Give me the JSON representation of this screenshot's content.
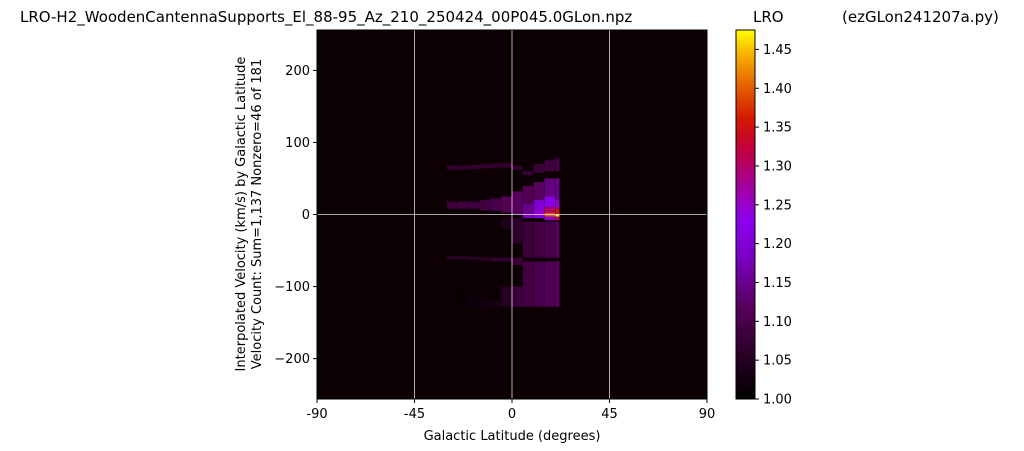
{
  "page": {
    "title": "LRO-H2_WoodenCantennaSupports_El_88-95_Az_210_250424_00P045.0GLon.npz",
    "colorbar_label": "LRO",
    "script_name": "(ezGLon241207a.py)"
  },
  "chart_data": {
    "type": "heatmap",
    "title": "LRO-H2_WoodenCantennaSupports_El_88-95_Az_210_250424_00P045.0GLon.npz",
    "xlabel": "Galactic Latitude (degrees)",
    "ylabel": "Interpolated Velocity (km/s) by Galactic Latitude",
    "ylabel2": "Velocity Count: Sum=1,137 Nonzero=46 of 181",
    "xlim": [
      -90,
      90
    ],
    "ylim": [
      -256,
      256
    ],
    "xticks": [
      -90,
      -45,
      0,
      45,
      90
    ],
    "xtick_labels": [
      "-90",
      "-45",
      "0",
      "45",
      "90"
    ],
    "yticks": [
      -200,
      -100,
      0,
      100,
      200
    ],
    "ytick_labels": [
      "−200",
      "−100",
      "0",
      "100",
      "200"
    ],
    "grid": true,
    "colormap": "gnuplot",
    "clim": [
      1.0,
      1.475
    ],
    "colorbar_ticks": [
      1.0,
      1.05,
      1.1,
      1.15,
      1.2,
      1.25,
      1.3,
      1.35,
      1.4,
      1.45
    ],
    "colorbar_tick_labels": [
      "1.00",
      "1.05",
      "1.10",
      "1.15",
      "1.20",
      "1.25",
      "1.30",
      "1.35",
      "1.40",
      "1.45"
    ],
    "columns": [
      {
        "lat": [
          -30,
          -25
        ],
        "ranges": [
          [
            62,
            68,
            1.07
          ],
          [
            8,
            18,
            1.08
          ],
          [
            -62,
            -58,
            1.06
          ]
        ]
      },
      {
        "lat": [
          -25,
          -20
        ],
        "ranges": [
          [
            62,
            68,
            1.07
          ],
          [
            8,
            18,
            1.09
          ],
          [
            -62,
            -58,
            1.06
          ],
          [
            -105,
            -128,
            1.01
          ]
        ]
      },
      {
        "lat": [
          -20,
          -15
        ],
        "ranges": [
          [
            63,
            69,
            1.07
          ],
          [
            8,
            18,
            1.09
          ],
          [
            -63,
            -59,
            1.06
          ],
          [
            -110,
            -128,
            1.02
          ]
        ]
      },
      {
        "lat": [
          -15,
          -10
        ],
        "ranges": [
          [
            64,
            70,
            1.07
          ],
          [
            6,
            20,
            1.09
          ],
          [
            -64,
            -60,
            1.06
          ],
          [
            -115,
            -128,
            1.02
          ]
        ]
      },
      {
        "lat": [
          -10,
          -5
        ],
        "ranges": [
          [
            65,
            71,
            1.07
          ],
          [
            5,
            22,
            1.1
          ],
          [
            -65,
            -60,
            1.07
          ],
          [
            -120,
            -128,
            1.03
          ]
        ]
      },
      {
        "lat": [
          -5,
          0
        ],
        "ranges": [
          [
            65,
            71,
            1.07
          ],
          [
            3,
            25,
            1.11
          ],
          [
            -20,
            -5,
            1.04
          ],
          [
            -65,
            -60,
            1.07
          ],
          [
            -128,
            -100,
            1.05
          ]
        ]
      },
      {
        "lat": [
          0,
          5
        ],
        "ranges": [
          [
            62,
            68,
            1.07
          ],
          [
            0,
            32,
            1.12
          ],
          [
            -40,
            -5,
            1.06
          ],
          [
            -70,
            -60,
            1.08
          ],
          [
            -128,
            -100,
            1.08
          ]
        ]
      },
      {
        "lat": [
          5,
          10
        ],
        "ranges": [
          [
            55,
            60,
            1.08
          ],
          [
            15,
            40,
            1.11
          ],
          [
            0,
            15,
            1.15
          ],
          [
            -5,
            0,
            1.18
          ],
          [
            -60,
            -10,
            1.08
          ],
          [
            -128,
            -65,
            1.09
          ]
        ]
      },
      {
        "lat": [
          10,
          15
        ],
        "ranges": [
          [
            58,
            70,
            1.08
          ],
          [
            20,
            45,
            1.12
          ],
          [
            5,
            20,
            1.2
          ],
          [
            0,
            5,
            1.25
          ],
          [
            -5,
            0,
            1.22
          ],
          [
            -60,
            -10,
            1.09
          ],
          [
            -128,
            -65,
            1.1
          ]
        ]
      },
      {
        "lat": [
          15,
          20
        ],
        "ranges": [
          [
            60,
            75,
            1.09
          ],
          [
            25,
            50,
            1.14
          ],
          [
            10,
            25,
            1.22
          ],
          [
            2,
            10,
            1.3
          ],
          [
            -3,
            2,
            1.4
          ],
          [
            -8,
            -3,
            1.25
          ],
          [
            -60,
            -10,
            1.1
          ],
          [
            -128,
            -65,
            1.11
          ]
        ]
      },
      {
        "lat": [
          20,
          22
        ],
        "ranges": [
          [
            60,
            78,
            1.1
          ],
          [
            20,
            50,
            1.15
          ],
          [
            8,
            20,
            1.25
          ],
          [
            0,
            8,
            1.35
          ],
          [
            -3,
            0,
            1.47
          ],
          [
            -8,
            -3,
            1.3
          ],
          [
            -60,
            -10,
            1.12
          ],
          [
            -128,
            -65,
            1.12
          ]
        ]
      }
    ]
  }
}
